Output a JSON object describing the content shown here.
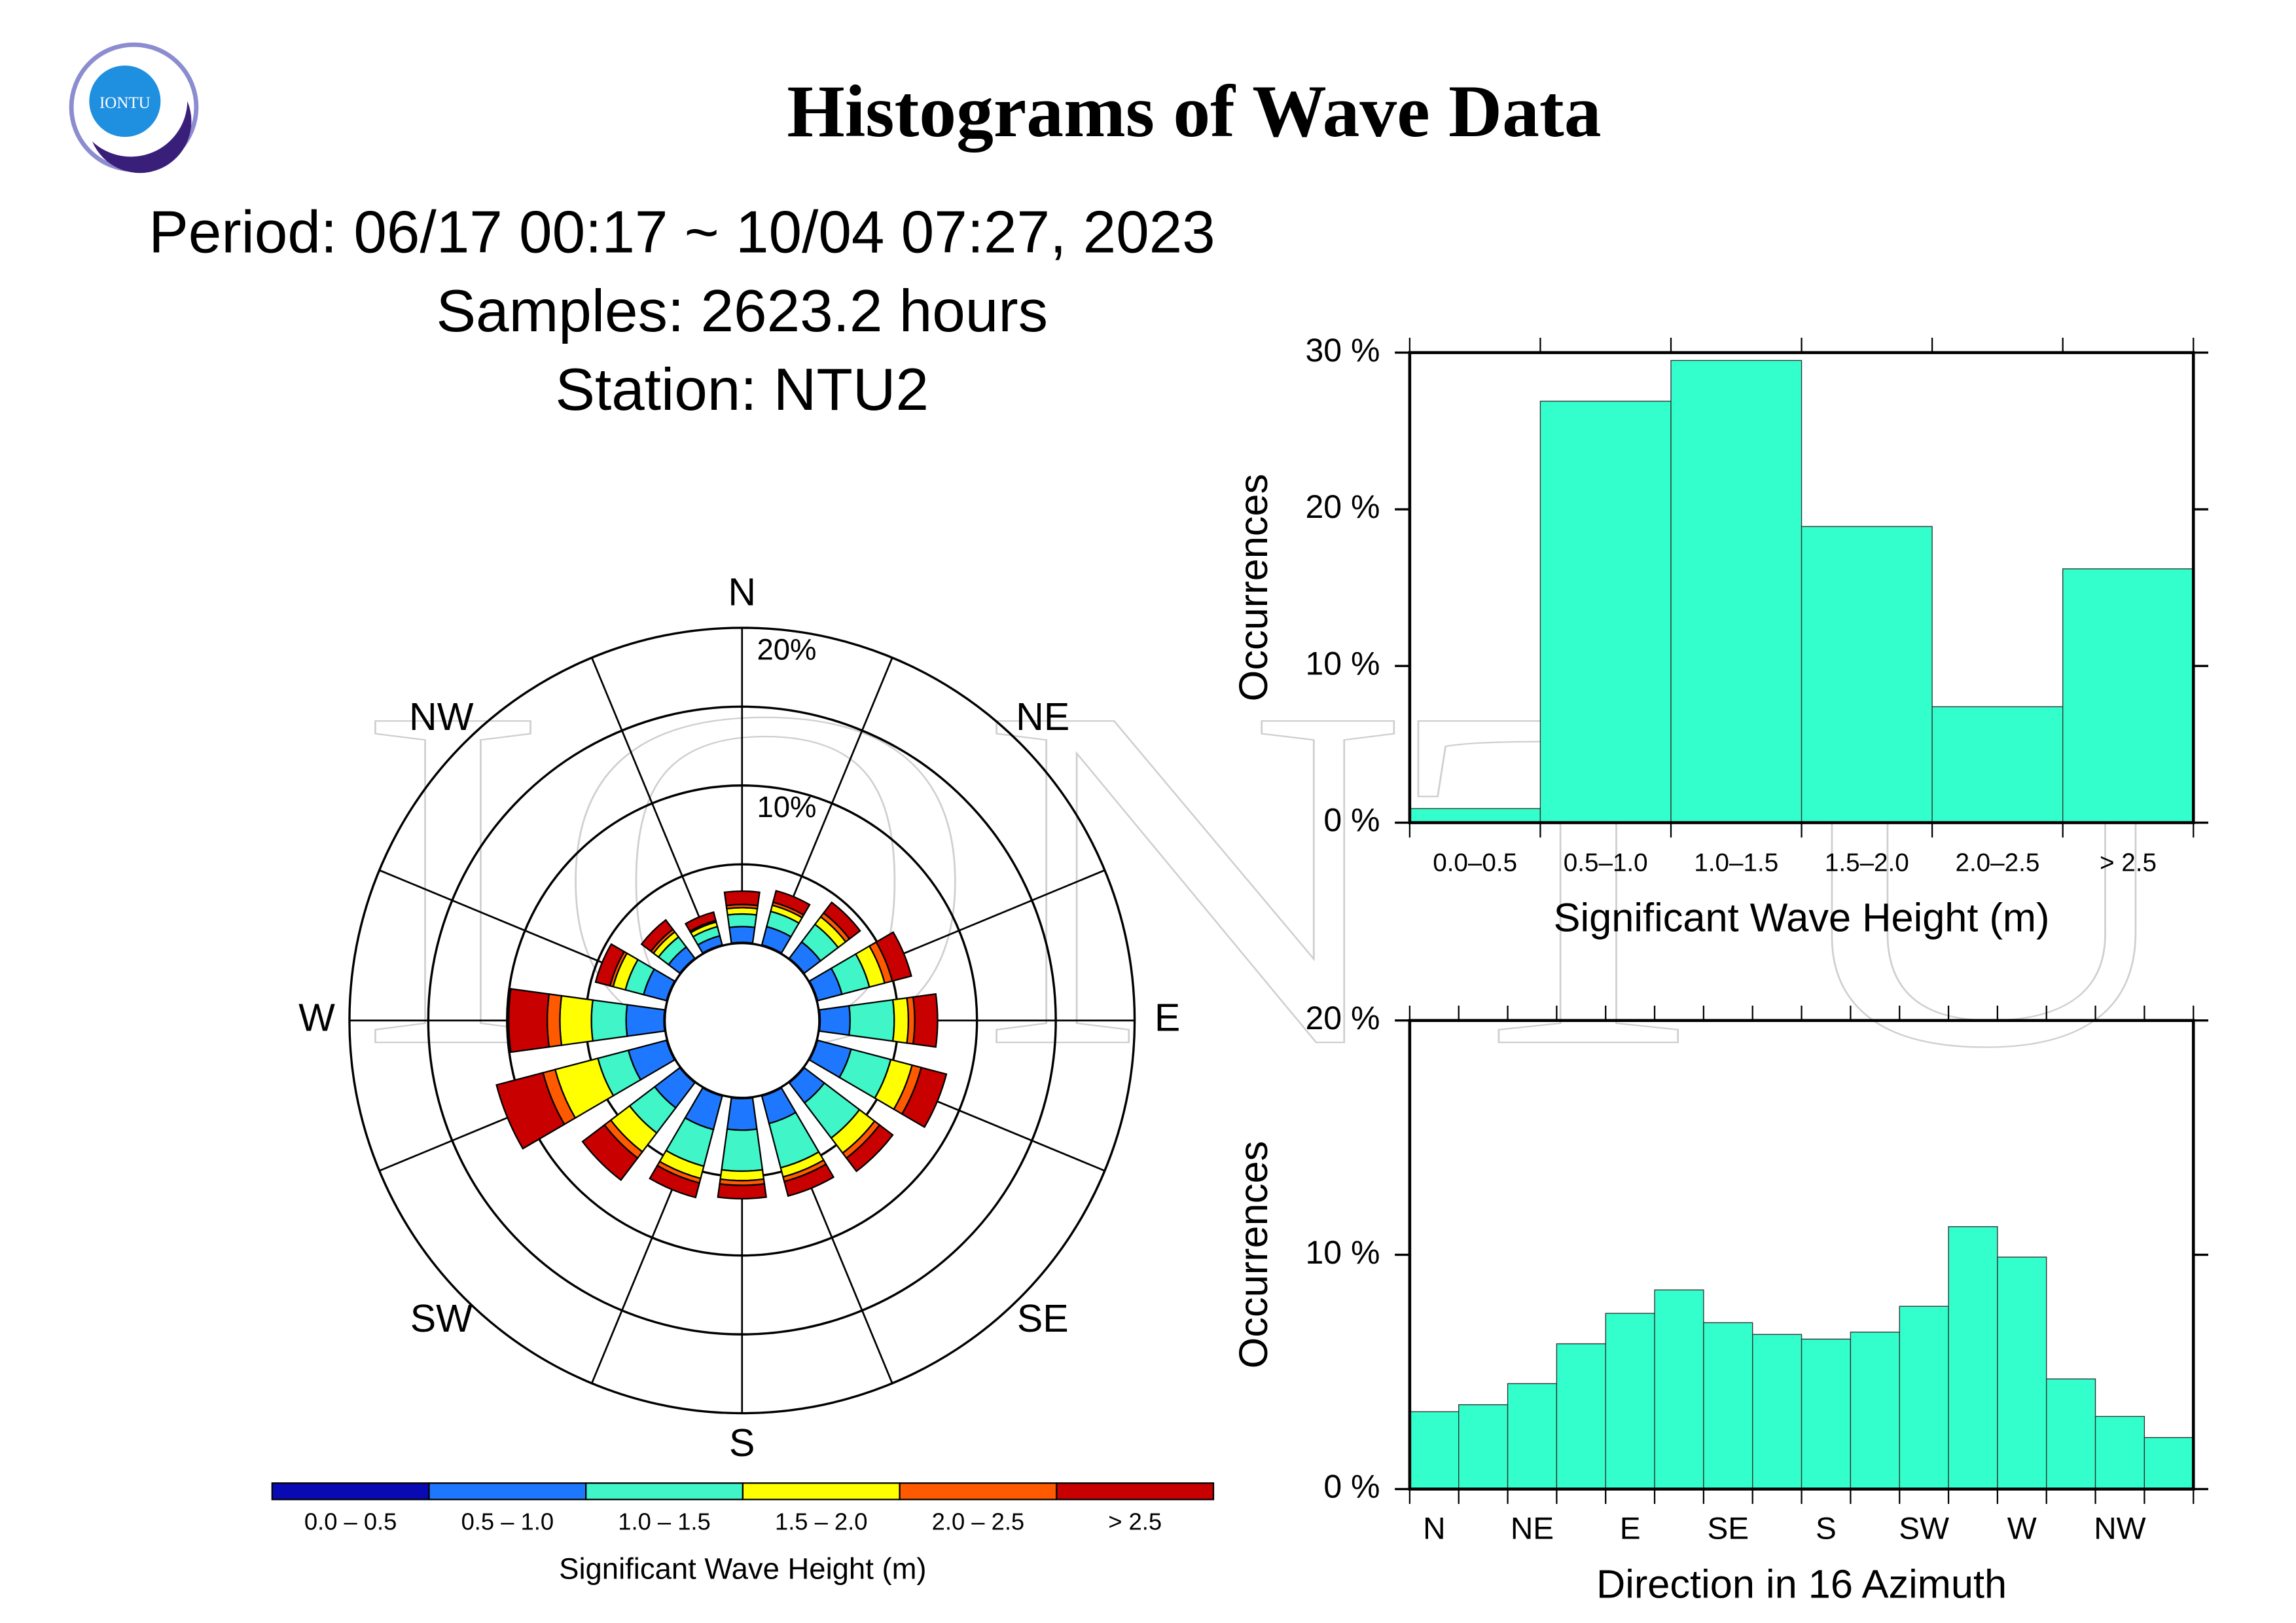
{
  "logo": "IONTU",
  "watermark": "IONTU",
  "title": "Histograms of Wave Data",
  "period": "Period: 06/17 00:17 ~ 10/04 07:27, 2023",
  "samples": "Samples: 2623.2 hours",
  "station": "Station: NTU2",
  "chart_data": [
    {
      "type": "rose",
      "direction_labels": [
        "N",
        "NE",
        "E",
        "SE",
        "S",
        "SW",
        "W",
        "NW"
      ],
      "rlim": [
        0,
        20
      ],
      "rgrid": [
        5,
        10,
        15,
        20
      ],
      "rticks": [
        {
          "value": 10,
          "label": "10%"
        },
        {
          "value": 20,
          "label": "20%"
        }
      ],
      "legend_title": "Significant Wave Height (m)",
      "series": [
        {
          "name": "0.0 – 0.5",
          "color": "#0a0ab4",
          "values": [
            0.05,
            0.05,
            0.05,
            0.05,
            0.05,
            0.05,
            0.05,
            0.05,
            0.05,
            0.05,
            0.05,
            0.05,
            0.05,
            0.05,
            0.05,
            0.05
          ]
        },
        {
          "name": "0.5 – 1.0",
          "color": "#1e78ff",
          "values": [
            1.0,
            1.2,
            1.3,
            1.6,
            1.9,
            2.2,
            1.6,
            1.8,
            2.0,
            2.2,
            2.0,
            2.5,
            2.4,
            1.5,
            0.9,
            0.6
          ]
        },
        {
          "name": "1.0 – 1.5",
          "color": "#40f5c8",
          "values": [
            0.8,
            1.0,
            1.4,
            1.8,
            2.8,
            2.6,
            2.8,
            2.9,
            2.6,
            2.4,
            2.0,
            2.0,
            2.2,
            1.2,
            0.8,
            0.6
          ]
        },
        {
          "name": "1.5 – 2.0",
          "color": "#ffff00",
          "values": [
            0.4,
            0.4,
            0.6,
            1.0,
            0.9,
            1.4,
            1.2,
            0.6,
            0.6,
            0.8,
            1.5,
            2.8,
            2.0,
            0.8,
            0.4,
            0.3
          ]
        },
        {
          "name": "2.0 – 2.5",
          "color": "#ff5a00",
          "values": [
            0.2,
            0.2,
            0.3,
            0.5,
            0.4,
            0.6,
            0.4,
            0.3,
            0.3,
            0.3,
            0.5,
            0.8,
            0.8,
            0.2,
            0.2,
            0.1
          ]
        },
        {
          "name": "> 2.5",
          "color": "#c80000",
          "values": [
            0.85,
            0.75,
            0.85,
            1.25,
            1.45,
            1.65,
            1.05,
            0.95,
            0.85,
            0.95,
            1.75,
            3.05,
            2.45,
            0.95,
            0.75,
            0.55
          ]
        }
      ]
    },
    {
      "type": "bar",
      "categories": [
        "0.0–0.5",
        "0.5–1.0",
        "1.0–1.5",
        "1.5–2.0",
        "2.0–2.5",
        "> 2.5"
      ],
      "values": [
        0.9,
        26.9,
        29.5,
        18.9,
        7.4,
        16.2
      ],
      "color": "#33ffcc",
      "ylim": [
        0,
        30
      ],
      "yticks": [
        {
          "value": 0,
          "label": "0 %"
        },
        {
          "value": 10,
          "label": "10 %"
        },
        {
          "value": 20,
          "label": "20 %"
        },
        {
          "value": 30,
          "label": "30 %"
        }
      ],
      "ylabel": "Occurrences",
      "xlabel": "Significant Wave Height (m)"
    },
    {
      "type": "bar",
      "categories": [
        "N",
        null,
        "NE",
        null,
        "E",
        null,
        "SE",
        null,
        "S",
        null,
        "SW",
        null,
        "W",
        null,
        "NW",
        null
      ],
      "values": [
        3.3,
        3.6,
        4.5,
        6.2,
        7.5,
        8.5,
        7.1,
        6.6,
        6.4,
        6.7,
        7.8,
        11.2,
        9.9,
        4.7,
        3.1,
        2.2
      ],
      "color": "#33ffcc",
      "ylim": [
        0,
        20
      ],
      "yticks": [
        {
          "value": 0,
          "label": "0 %"
        },
        {
          "value": 10,
          "label": "10 %"
        },
        {
          "value": 20,
          "label": "20 %"
        }
      ],
      "ylabel": "Occurrences",
      "xlabel": "Direction in 16 Azimuth"
    }
  ]
}
